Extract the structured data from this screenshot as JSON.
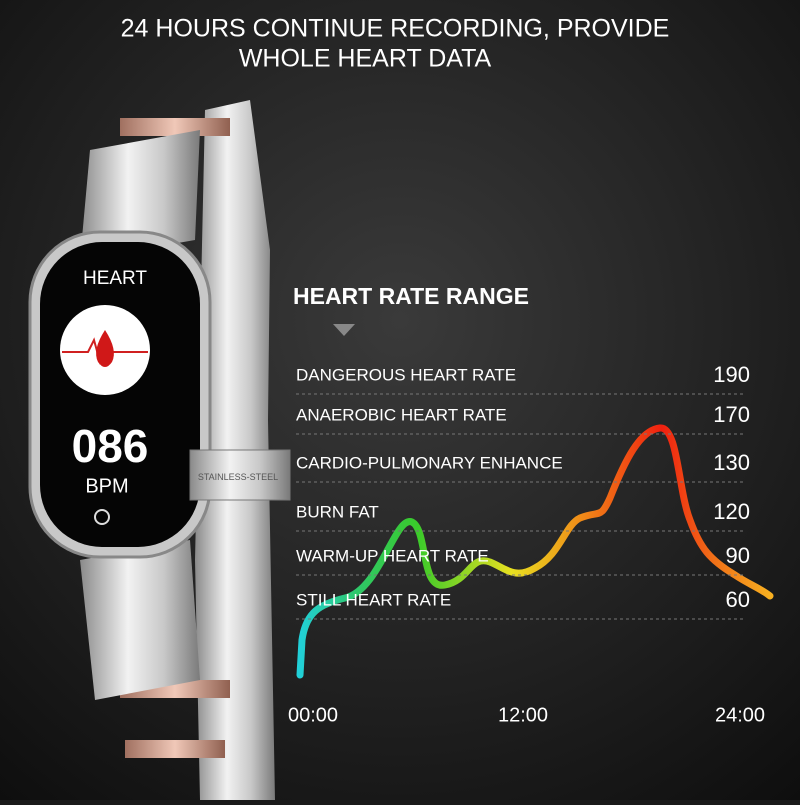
{
  "header": {
    "title_lines": [
      "24 HOURS CONTINUE RECORDING, PROVIDE",
      "WHOLE HEART DATA"
    ]
  },
  "watch": {
    "screen_label": "HEART",
    "reading": "086",
    "unit": "BPM",
    "band_engraving": "STAINLESS-STEEL"
  },
  "heart_rate_range": {
    "title": "HEART RATE RANGE",
    "zones": [
      {
        "label": "DANGEROUS HEART RATE",
        "value": "190"
      },
      {
        "label": "ANAEROBIC HEART RATE",
        "value": "170"
      },
      {
        "label": "CARDIO-PULMONARY ENHANCE",
        "value": "130"
      },
      {
        "label": "BURN FAT",
        "value": "120"
      },
      {
        "label": "WARM-UP HEART RATE",
        "value": "90"
      },
      {
        "label": "STILL HEART RATE",
        "value": "60"
      }
    ],
    "time_labels": [
      "00:00",
      "12:00",
      "24:00"
    ]
  }
}
